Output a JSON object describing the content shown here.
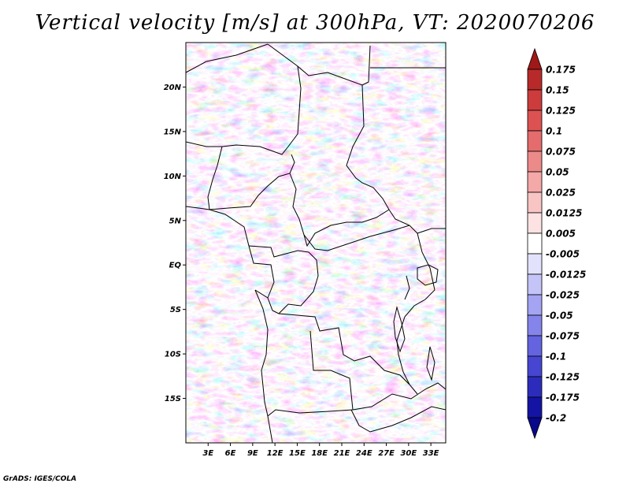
{
  "title": "Vertical velocity [m/s] at 300hPa, VT: 2020070206",
  "footer": "GrADS: IGES/COLA",
  "map": {
    "lat_ticks": [
      "20N",
      "15N",
      "10N",
      "5N",
      "EQ",
      "5S",
      "10S",
      "15S"
    ],
    "lon_ticks": [
      "3E",
      "6E",
      "9E",
      "12E",
      "15E",
      "18E",
      "21E",
      "24E",
      "27E",
      "30E",
      "33E"
    ],
    "lat_range": [
      -20,
      25
    ],
    "lon_range": [
      0,
      35
    ]
  },
  "colorbar": {
    "levels": [
      "0.175",
      "0.15",
      "0.125",
      "0.1",
      "0.075",
      "0.05",
      "0.025",
      "0.0125",
      "0.005",
      "-0.005",
      "-0.0125",
      "-0.025",
      "-0.05",
      "-0.075",
      "-0.1",
      "-0.125",
      "-0.175",
      "-0.2"
    ],
    "colors": [
      "#a01818",
      "#b82a2a",
      "#cc3c3c",
      "#dc5252",
      "#e46c6c",
      "#ec8a8a",
      "#f4a8a8",
      "#f8c4c4",
      "#fce2e2",
      "#ffffff",
      "#e2e2fc",
      "#c4c4f8",
      "#a4a4f2",
      "#8484ea",
      "#6464e0",
      "#4646d2",
      "#2c2cbc",
      "#1414a4",
      "#08088a"
    ]
  }
}
